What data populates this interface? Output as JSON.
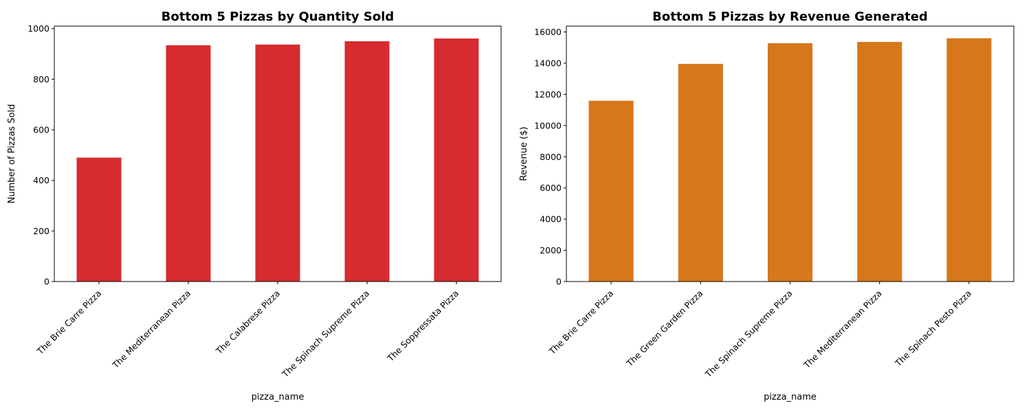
{
  "chart_data": [
    {
      "type": "bar",
      "title": "Bottom 5 Pizzas by Quantity Sold",
      "xlabel": "pizza_name",
      "ylabel": "Number of Pizzas Sold",
      "categories": [
        "The Brie Carre Pizza",
        "The Mediterranean Pizza",
        "The Calabrese Pizza",
        "The Spinach Supreme Pizza",
        "The Soppressata Pizza"
      ],
      "values": [
        490,
        934,
        937,
        950,
        961
      ],
      "ylim": [
        0,
        1010
      ],
      "yticks": [
        0,
        200,
        400,
        600,
        800,
        1000
      ],
      "color": "#d62c2f",
      "grid": false
    },
    {
      "type": "bar",
      "title": "Bottom 5 Pizzas by Revenue Generated",
      "xlabel": "pizza_name",
      "ylabel": "Revenue ($)",
      "categories": [
        "The Brie Carre Pizza",
        "The Green Garden Pizza",
        "The Spinach Supreme Pizza",
        "The Mediterranean Pizza",
        "The Spinach Pesto Pizza"
      ],
      "values": [
        11588.5,
        13955.75,
        15277.75,
        15360.5,
        15596
      ],
      "ylim": [
        0,
        16376
      ],
      "yticks": [
        0,
        2000,
        4000,
        6000,
        8000,
        10000,
        12000,
        14000,
        16000
      ],
      "color": "#d6781a",
      "grid": false
    }
  ]
}
